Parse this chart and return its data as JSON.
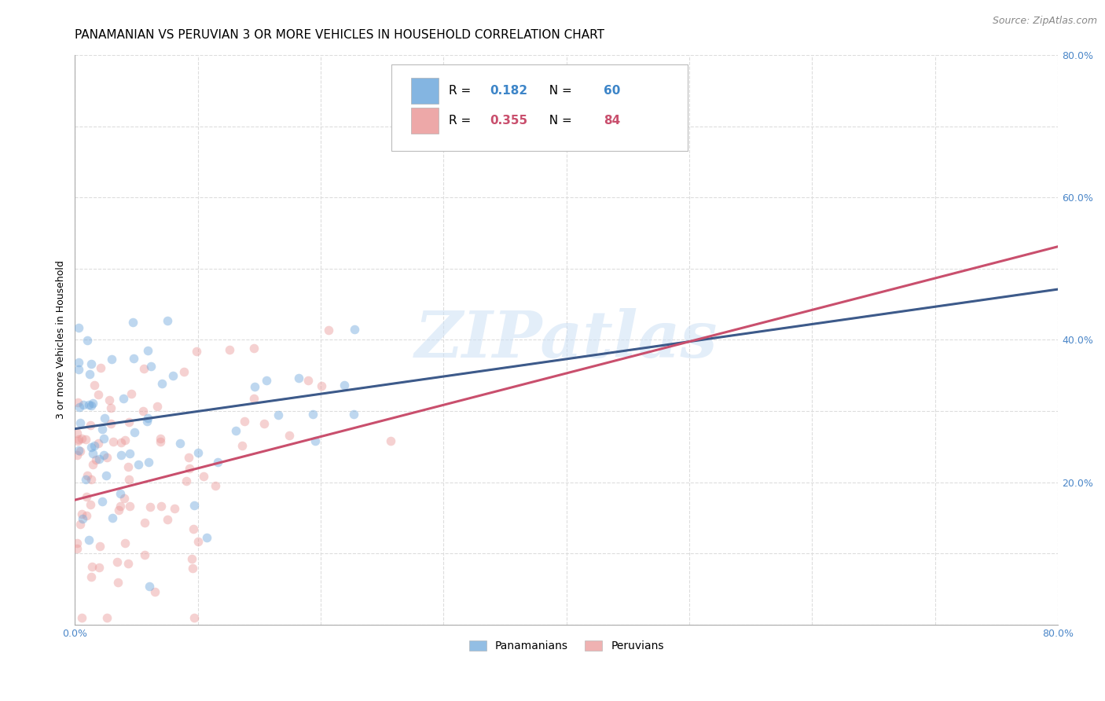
{
  "title": "PANAMANIAN VS PERUVIAN 3 OR MORE VEHICLES IN HOUSEHOLD CORRELATION CHART",
  "source": "Source: ZipAtlas.com",
  "ylabel": "3 or more Vehicles in Household",
  "xlim": [
    0.0,
    0.8
  ],
  "ylim": [
    0.0,
    0.8
  ],
  "xticks": [
    0.0,
    0.1,
    0.2,
    0.3,
    0.4,
    0.5,
    0.6,
    0.7,
    0.8
  ],
  "yticks": [
    0.0,
    0.1,
    0.2,
    0.3,
    0.4,
    0.5,
    0.6,
    0.7,
    0.8
  ],
  "xticklabels": [
    "0.0%",
    "",
    "",
    "",
    "",
    "",
    "",
    "",
    "80.0%"
  ],
  "yticklabels": [
    "",
    "",
    "20.0%",
    "",
    "40.0%",
    "",
    "60.0%",
    "",
    "80.0%"
  ],
  "panama_color": "#6fa8dc",
  "peru_color": "#ea9999",
  "panama_line_color": "#3d5a8a",
  "peru_line_color": "#c94f6d",
  "R_panama": 0.182,
  "N_panama": 60,
  "R_peru": 0.355,
  "N_peru": 84,
  "watermark_text": "ZIPatlas",
  "background_color": "#ffffff",
  "grid_color": "#dddddd",
  "title_fontsize": 11,
  "source_fontsize": 9,
  "axis_label_fontsize": 9,
  "tick_fontsize": 9,
  "marker_size": 70,
  "marker_alpha": 0.45,
  "line_width": 2.2,
  "pan_line_intercept": 0.275,
  "pan_line_slope": 0.245,
  "per_line_intercept": 0.175,
  "per_line_slope": 0.445
}
